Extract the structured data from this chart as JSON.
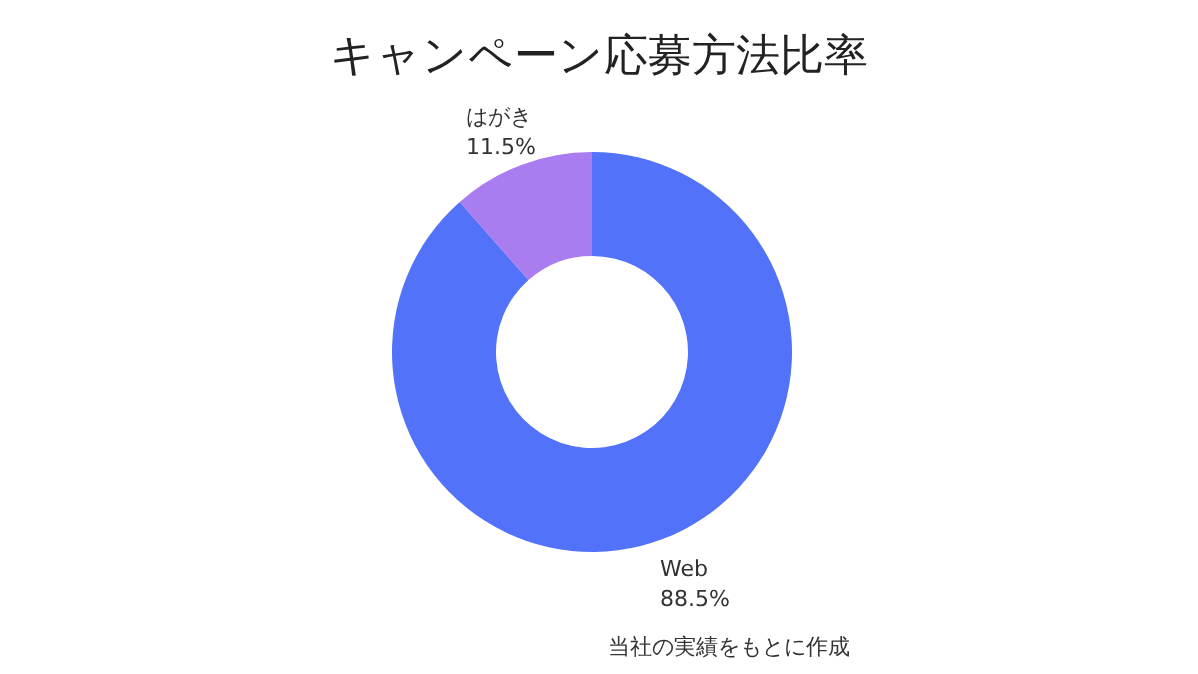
{
  "chart_data": {
    "type": "donut",
    "title": "キャンペーン応募方法比率",
    "categories": [
      "Web",
      "はがき"
    ],
    "values": [
      88.5,
      11.5
    ],
    "colors": [
      "#5272f9",
      "#a97cf0"
    ],
    "value_labels": [
      "88.5%",
      "11.5%"
    ],
    "annotations": [
      "当社の実績をもとに作成"
    ]
  }
}
